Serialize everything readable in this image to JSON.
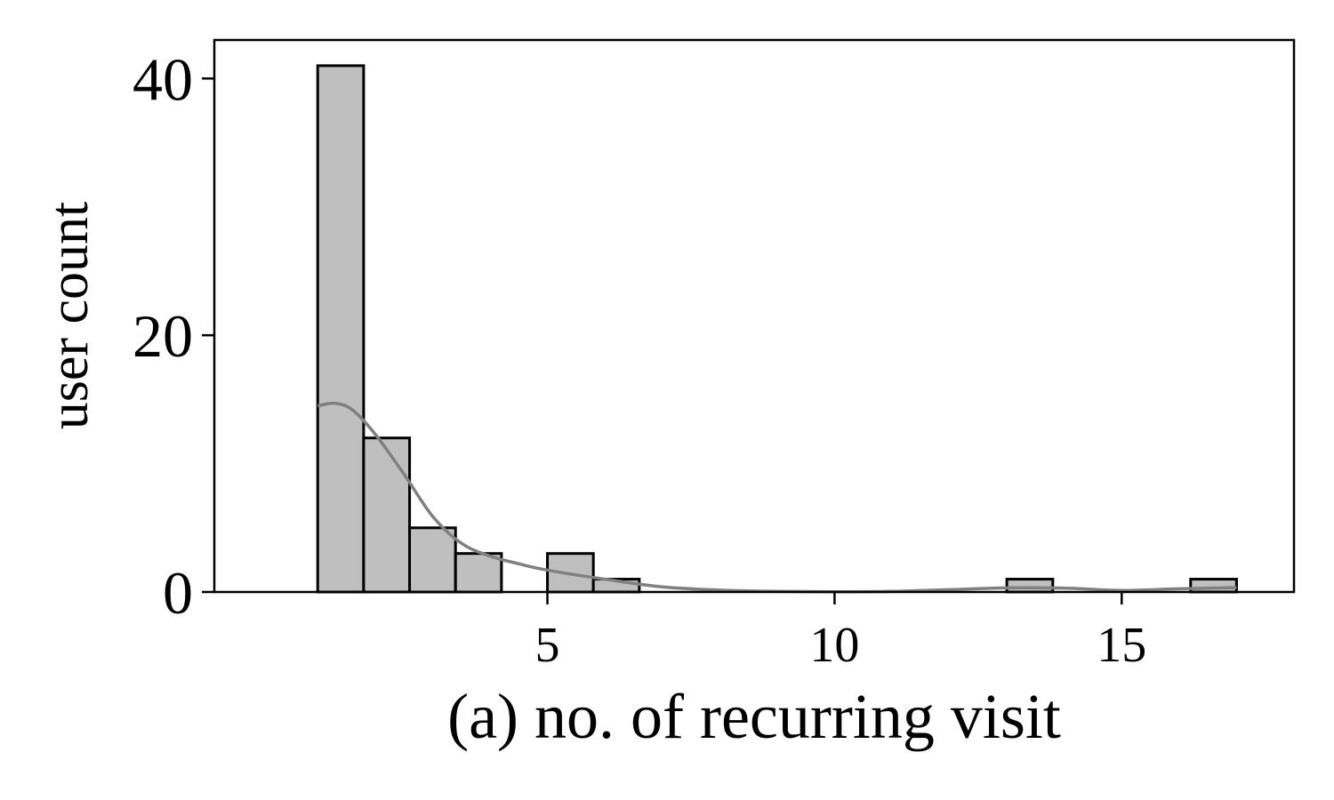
{
  "chart_data": {
    "type": "bar",
    "subtype": "histogram-with-kde",
    "xlabel": "(a) no. of recurring visit",
    "ylabel": "user count",
    "xlim": [
      -0.8,
      18
    ],
    "ylim": [
      0,
      43
    ],
    "x_ticks": [
      5,
      10,
      15
    ],
    "x_tick_labels": [
      "5",
      "10",
      "15"
    ],
    "y_ticks": [
      0,
      20,
      40
    ],
    "y_tick_labels": [
      "0",
      "20",
      "40"
    ],
    "grid": false,
    "bins": [
      {
        "x0": 1.0,
        "x1": 1.8,
        "count": 41
      },
      {
        "x0": 1.8,
        "x1": 2.6,
        "count": 12
      },
      {
        "x0": 2.6,
        "x1": 3.4,
        "count": 5
      },
      {
        "x0": 3.4,
        "x1": 4.2,
        "count": 3
      },
      {
        "x0": 4.2,
        "x1": 5.0,
        "count": 0
      },
      {
        "x0": 5.0,
        "x1": 5.8,
        "count": 3
      },
      {
        "x0": 5.8,
        "x1": 6.6,
        "count": 1
      },
      {
        "x0": 13.0,
        "x1": 13.8,
        "count": 1
      },
      {
        "x0": 16.2,
        "x1": 17.0,
        "count": 1
      }
    ],
    "kde": {
      "x": [
        1.0,
        1.3,
        1.6,
        2.0,
        2.5,
        3.0,
        3.5,
        4.0,
        4.5,
        5.0,
        6.0,
        7.0,
        8.0,
        9.0,
        10.0,
        11.0,
        12.0,
        13.0,
        14.0,
        15.0,
        16.0,
        17.0
      ],
      "y": [
        14.5,
        14.7,
        14.2,
        12.3,
        9.2,
        5.9,
        3.8,
        2.8,
        2.2,
        1.7,
        1.0,
        0.4,
        0.15,
        0.05,
        0.02,
        0.05,
        0.18,
        0.32,
        0.3,
        0.12,
        0.25,
        0.35
      ]
    },
    "colors": {
      "bar_fill": "#bfbfbf",
      "bar_edge": "#000000",
      "kde_line": "#808080"
    }
  }
}
